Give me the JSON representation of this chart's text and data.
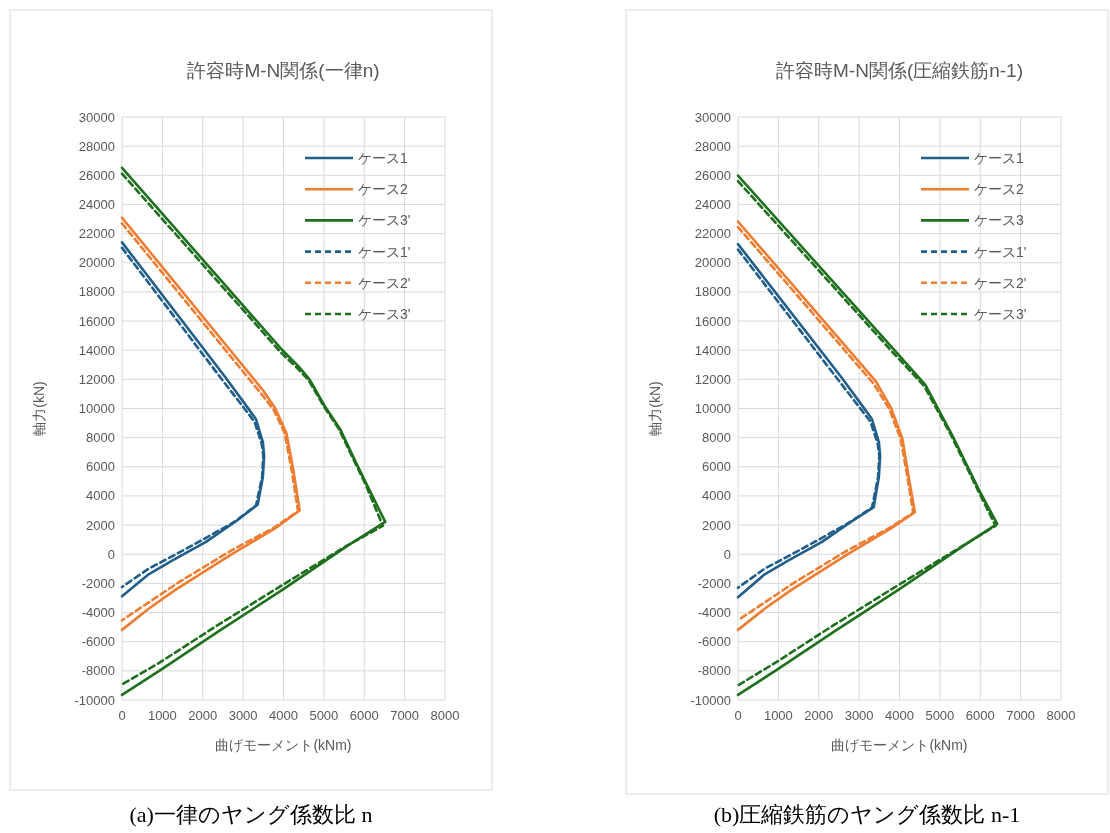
{
  "chart_data": [
    {
      "type": "line",
      "title": "許容時M-N関係(一律n)",
      "xlabel": "曲げモーメント(kNm)",
      "ylabel": "軸力(kN)",
      "xlim": [
        0,
        8000
      ],
      "xticks": [
        0,
        1000,
        2000,
        3000,
        4000,
        5000,
        6000,
        7000,
        8000
      ],
      "ylim": [
        -10000,
        30000
      ],
      "yticks": [
        -10000,
        -8000,
        -6000,
        -4000,
        -2000,
        0,
        2000,
        4000,
        6000,
        8000,
        10000,
        12000,
        14000,
        16000,
        18000,
        20000,
        22000,
        24000,
        26000,
        28000,
        30000
      ],
      "grid": true,
      "legend": "top right",
      "annotations": [
        "(a)一律のヤング係数比 n"
      ],
      "series": [
        {
          "name": "ケース1",
          "color": "#215f8a",
          "line_style": "solid",
          "x": [
            0,
            2560,
            3080,
            3320,
            3490,
            3520,
            3490,
            3360,
            2840,
            2080,
            1230,
            660,
            0
          ],
          "values": [
            21400,
            12140,
            10180,
            9260,
            7680,
            6760,
            5320,
            3400,
            2300,
            850,
            -460,
            -1380,
            -2880
          ]
        },
        {
          "name": "ケース2",
          "color": "#ed7d31",
          "line_style": "solid",
          "x": [
            0,
            3500,
            3790,
            4070,
            4240,
            4400,
            3790,
            2750,
            1330,
            660,
            0
          ],
          "values": [
            23090,
            11220,
            10040,
            8340,
            5840,
            3000,
            1770,
            60,
            -2430,
            -3740,
            -5190
          ]
        },
        {
          "name": "ケース3'",
          "color": "#1e6f1e",
          "line_style": "solid",
          "x": [
            0,
            3980,
            4360,
            4640,
            5020,
            5400,
            5780,
            6060,
            6520,
            5590,
            3980,
            2370,
            950,
            0
          ],
          "values": [
            26510,
            13980,
            12930,
            12010,
            10170,
            8600,
            6370,
            4790,
            2220,
            590,
            -2430,
            -5320,
            -7950,
            -9650
          ]
        },
        {
          "name": "ケース1'",
          "color": "#215f8a",
          "line_style": "dashed",
          "x": [
            0,
            2500,
            3030,
            3280,
            3460,
            3500,
            3470,
            3320,
            2800,
            2000,
            1200,
            660,
            0
          ],
          "values": [
            21020,
            11900,
            10000,
            9100,
            7600,
            6760,
            5300,
            3350,
            2250,
            1000,
            -200,
            -990,
            -2250
          ]
        },
        {
          "name": "ケース2'",
          "color": "#ed7d31",
          "line_style": "dashed",
          "x": [
            0,
            3450,
            3750,
            4030,
            4200,
            4360,
            3750,
            2700,
            1420,
            0
          ],
          "values": [
            22700,
            11000,
            9950,
            8300,
            5800,
            2950,
            1800,
            250,
            -1900,
            -4530
          ]
        },
        {
          "name": "ケース3'",
          "color": "#1e6f1e",
          "line_style": "dashed",
          "x": [
            0,
            3950,
            4330,
            4620,
            5000,
            5380,
            5760,
            6040,
            6460,
            5550,
            3950,
            2350,
            950,
            0
          ],
          "values": [
            26110,
            13800,
            12800,
            11950,
            10150,
            8550,
            6350,
            4750,
            1950,
            550,
            -2150,
            -4900,
            -7400,
            -8940
          ]
        }
      ]
    },
    {
      "type": "line",
      "title": "許容時M-N関係(圧縮鉄筋n-1)",
      "xlabel": "曲げモーメント(kNm)",
      "ylabel": "軸力(kN)",
      "xlim": [
        0,
        8000
      ],
      "xticks": [
        0,
        1000,
        2000,
        3000,
        4000,
        5000,
        6000,
        7000,
        8000
      ],
      "ylim": [
        -10000,
        30000
      ],
      "yticks": [
        -10000,
        -8000,
        -6000,
        -4000,
        -2000,
        0,
        2000,
        4000,
        6000,
        8000,
        10000,
        12000,
        14000,
        16000,
        18000,
        20000,
        22000,
        24000,
        26000,
        28000,
        30000
      ],
      "grid": true,
      "legend": "top right",
      "annotations": [
        "(b)圧縮鉄筋のヤング係数比 n-1"
      ],
      "series": [
        {
          "name": "ケース1",
          "color": "#215f8a",
          "line_style": "solid",
          "x": [
            0,
            2560,
            3080,
            3320,
            3490,
            3520,
            3490,
            3360,
            2840,
            2080,
            1230,
            660,
            0
          ],
          "values": [
            21280,
            12140,
            10180,
            9260,
            7680,
            6760,
            5320,
            3220,
            2300,
            850,
            -460,
            -1380,
            -2950
          ]
        },
        {
          "name": "ケース2",
          "color": "#ed7d31",
          "line_style": "solid",
          "x": [
            0,
            3410,
            3790,
            4070,
            4210,
            4380,
            3790,
            2750,
            1330,
            660,
            0
          ],
          "values": [
            22830,
            11880,
            10040,
            7940,
            5580,
            2880,
            1770,
            60,
            -2430,
            -3740,
            -5190
          ]
        },
        {
          "name": "ケース3",
          "color": "#1e6f1e",
          "line_style": "solid",
          "x": [
            0,
            3880,
            4640,
            5300,
            5970,
            6420,
            5590,
            3980,
            2370,
            950,
            0
          ],
          "values": [
            25980,
            13980,
            11620,
            8200,
            4400,
            2090,
            590,
            -2430,
            -5320,
            -7950,
            -9650
          ]
        },
        {
          "name": "ケース1'",
          "color": "#215f8a",
          "line_style": "dashed",
          "x": [
            0,
            2500,
            3030,
            3280,
            3460,
            3500,
            3470,
            3320,
            2800,
            2000,
            1200,
            660,
            0
          ],
          "values": [
            20900,
            11900,
            10000,
            9100,
            7600,
            6760,
            5300,
            3200,
            2250,
            1000,
            -200,
            -990,
            -2300
          ]
        },
        {
          "name": "ケース2'",
          "color": "#ed7d31",
          "line_style": "dashed",
          "x": [
            0,
            3360,
            3750,
            4030,
            4180,
            4340,
            3750,
            2700,
            1420,
            0
          ],
          "values": [
            22450,
            11700,
            9950,
            7900,
            5550,
            2850,
            1800,
            250,
            -1900,
            -4530
          ]
        },
        {
          "name": "ケース3'",
          "color": "#1e6f1e",
          "line_style": "dashed",
          "x": [
            0,
            3850,
            4610,
            5280,
            5950,
            6380,
            5550,
            3950,
            2350,
            950,
            0
          ],
          "values": [
            25600,
            13800,
            11550,
            8150,
            4350,
            1950,
            550,
            -2150,
            -4900,
            -7400,
            -9000
          ]
        }
      ]
    }
  ]
}
